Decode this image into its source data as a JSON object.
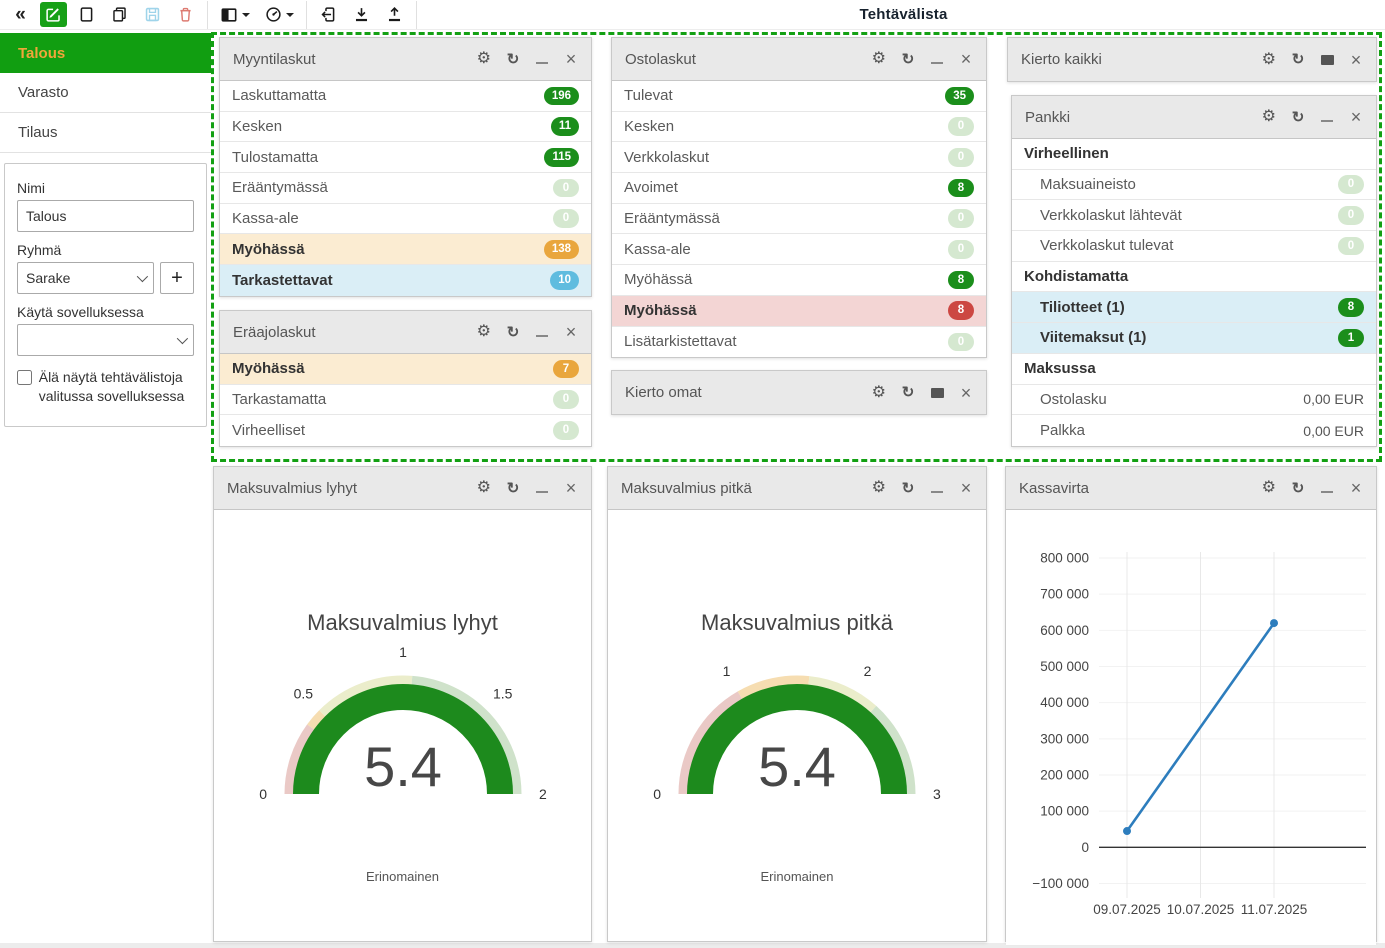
{
  "toolbar": {
    "title": "Tehtävälista",
    "buttons": [
      {
        "name": "collapse-sidebar",
        "icon": "double-chevron-left-icon"
      },
      {
        "name": "edit",
        "icon": "pencil-square-icon",
        "active": true
      },
      {
        "name": "new-document",
        "icon": "file-icon"
      },
      {
        "name": "copy",
        "icon": "copy-icon"
      },
      {
        "name": "save",
        "icon": "floppy-icon",
        "disabled": true
      },
      {
        "name": "delete",
        "icon": "trash-icon"
      },
      {
        "name": "layout-columns",
        "icon": "columns-icon",
        "has_caret": true
      },
      {
        "name": "widget-gallery",
        "icon": "gauge-circle-icon",
        "has_caret": true
      },
      {
        "name": "import",
        "icon": "file-import-icon"
      },
      {
        "name": "download",
        "icon": "download-icon"
      },
      {
        "name": "upload",
        "icon": "upload-icon"
      }
    ]
  },
  "sidebar": {
    "items": [
      {
        "label": "Talous",
        "active": true
      },
      {
        "label": "Varasto",
        "active": false
      },
      {
        "label": "Tilaus",
        "active": false
      }
    ],
    "form": {
      "name_label": "Nimi",
      "name_value": "Talous",
      "group_label": "Ryhmä",
      "group_value": "Sarake",
      "add_button": "+",
      "app_label": "Käytä sovelluksessa",
      "app_value": "",
      "checkbox_label": "Älä näytä tehtävälistoja valitussa sovelluksessa",
      "checkbox_checked": false
    }
  },
  "widgets": {
    "myyntilaskut": {
      "title": "Myyntilaskut",
      "controls": [
        "settings",
        "refresh",
        "minimize",
        "close"
      ],
      "rows": [
        {
          "label": "Laskuttamatta",
          "badge": "196",
          "badge_style": "green"
        },
        {
          "label": "Kesken",
          "badge": "11",
          "badge_style": "green"
        },
        {
          "label": "Tulostamatta",
          "badge": "115",
          "badge_style": "green"
        },
        {
          "label": "Erääntymässä",
          "badge": "0",
          "badge_style": "pale"
        },
        {
          "label": "Kassa-ale",
          "badge": "0",
          "badge_style": "pale"
        },
        {
          "label": "Myöhässä",
          "badge": "138",
          "badge_style": "orange",
          "row_style": "orange",
          "bold": true
        },
        {
          "label": "Tarkastettavat",
          "badge": "10",
          "badge_style": "blue",
          "row_style": "blue",
          "bold": true
        }
      ]
    },
    "eraajolaskut": {
      "title": "Eräajolaskut",
      "controls": [
        "settings",
        "refresh",
        "minimize",
        "close"
      ],
      "rows": [
        {
          "label": "Myöhässä",
          "badge": "7",
          "badge_style": "orange",
          "row_style": "orange",
          "bold": true
        },
        {
          "label": "Tarkastamatta",
          "badge": "0",
          "badge_style": "pale"
        },
        {
          "label": "Virheelliset",
          "badge": "0",
          "badge_style": "pale"
        }
      ]
    },
    "ostolaskut": {
      "title": "Ostolaskut",
      "controls": [
        "settings",
        "refresh",
        "minimize",
        "close"
      ],
      "rows": [
        {
          "label": "Tulevat",
          "badge": "35",
          "badge_style": "green"
        },
        {
          "label": "Kesken",
          "badge": "0",
          "badge_style": "pale"
        },
        {
          "label": "Verkkolaskut",
          "badge": "0",
          "badge_style": "pale"
        },
        {
          "label": "Avoimet",
          "badge": "8",
          "badge_style": "green"
        },
        {
          "label": "Erääntymässä",
          "badge": "0",
          "badge_style": "pale"
        },
        {
          "label": "Kassa-ale",
          "badge": "0",
          "badge_style": "pale"
        },
        {
          "label": "Myöhässä",
          "badge": "8",
          "badge_style": "green"
        },
        {
          "label": "Myöhässä",
          "badge": "8",
          "badge_style": "red",
          "row_style": "red",
          "bold": true
        },
        {
          "label": "Lisätarkistettavat",
          "badge": "0",
          "badge_style": "pale"
        }
      ]
    },
    "kierto_omat": {
      "title": "Kierto omat",
      "controls": [
        "settings",
        "refresh",
        "restore",
        "close"
      ],
      "rows": []
    },
    "kierto_kaikki": {
      "title": "Kierto kaikki",
      "controls": [
        "settings",
        "refresh",
        "restore",
        "close"
      ],
      "rows": []
    },
    "pankki": {
      "title": "Pankki",
      "controls": [
        "settings",
        "refresh",
        "minimize",
        "close"
      ],
      "rows": [
        {
          "label": "Virheellinen",
          "type": "section"
        },
        {
          "label": "Maksuaineisto",
          "badge": "0",
          "badge_style": "pale",
          "indent": true
        },
        {
          "label": "Verkkolaskut lähtevät",
          "badge": "0",
          "badge_style": "pale",
          "indent": true
        },
        {
          "label": "Verkkolaskut tulevat",
          "badge": "0",
          "badge_style": "pale",
          "indent": true
        },
        {
          "label": "Kohdistamatta",
          "type": "section"
        },
        {
          "label": "Tiliotteet (1)",
          "badge": "8",
          "badge_style": "green",
          "row_style": "blue",
          "bold": true,
          "indent": true
        },
        {
          "label": "Viitemaksut (1)",
          "badge": "1",
          "badge_style": "green",
          "row_style": "blue",
          "bold": true,
          "indent": true
        },
        {
          "label": "Maksussa",
          "type": "section"
        },
        {
          "label": "Ostolasku",
          "value": "0,00 EUR",
          "indent": true
        },
        {
          "label": "Palkka",
          "value": "0,00 EUR",
          "indent": true
        }
      ]
    },
    "maksuvalmius_lyhyt": {
      "title": "Maksuvalmius lyhyt",
      "controls": [
        "settings",
        "refresh",
        "minimize",
        "close"
      ]
    },
    "maksuvalmius_pitka": {
      "title": "Maksuvalmius pitkä",
      "controls": [
        "settings",
        "refresh",
        "minimize",
        "close"
      ]
    },
    "kassavirta": {
      "title": "Kassavirta",
      "controls": [
        "settings",
        "refresh",
        "minimize",
        "close"
      ]
    }
  },
  "chart_data": [
    {
      "type": "gauge",
      "title": "Maksuvalmius lyhyt",
      "value": 5.4,
      "value_text": "5.4",
      "min": 0,
      "max": 2,
      "ticks": [
        0,
        0.5,
        1,
        1.5,
        2
      ],
      "status": "Erinomainen",
      "value_color": "#1d8a1d",
      "bands": [
        {
          "from": 0,
          "to": 0.4,
          "color": "#eac9c6"
        },
        {
          "from": 0.4,
          "to": 0.5,
          "color": "#f6ddb1"
        },
        {
          "from": 0.5,
          "to": 1.05,
          "color": "#ebedcb"
        },
        {
          "from": 1.05,
          "to": 2,
          "color": "#cfe2ca"
        }
      ]
    },
    {
      "type": "gauge",
      "title": "Maksuvalmius pitkä",
      "value": 5.4,
      "value_text": "5.4",
      "min": 0,
      "max": 3,
      "ticks": [
        0,
        1,
        2,
        3
      ],
      "status": "Erinomainen",
      "value_color": "#1d8a1d",
      "bands": [
        {
          "from": 0,
          "to": 1,
          "color": "#eac9c6"
        },
        {
          "from": 1,
          "to": 1.6,
          "color": "#f6ddb1"
        },
        {
          "from": 1.6,
          "to": 2.2,
          "color": "#ebedcb"
        },
        {
          "from": 2.2,
          "to": 3,
          "color": "#cfe2ca"
        }
      ]
    },
    {
      "type": "line",
      "title": "Kassavirta",
      "categories": [
        "09.07.2025",
        "10.07.2025",
        "11.07.2025"
      ],
      "series": [
        {
          "name": "Kassavirta",
          "color": "#2d7dbd",
          "points": [
            {
              "x": "09.07.2025",
              "y": 45000
            },
            {
              "x": "11.07.2025",
              "y": 620000
            }
          ]
        }
      ],
      "ylim": [
        -100000,
        800000
      ],
      "ytick_step": 100000,
      "grid": true,
      "legend": false
    }
  ],
  "colors": {
    "brand_green": "#119e11",
    "active_item_text": "#efa63a",
    "dashed_selection": "#13a013",
    "badge_green": "#1b8e1b",
    "badge_pale": "#d5e8d0",
    "badge_orange": "#e9a63d",
    "badge_blue": "#5fbcdf",
    "badge_red": "#cc4742",
    "row_orange": "#fbecd2",
    "row_blue": "#daeef6",
    "row_red": "#f3d5d4",
    "line_series": "#2d7dbd"
  }
}
